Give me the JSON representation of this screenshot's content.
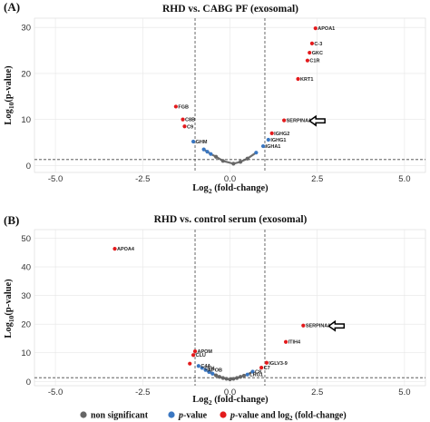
{
  "legend": {
    "items": [
      {
        "label": "non significant",
        "color": "#666666"
      },
      {
        "label_italic": "p",
        "label": "-value",
        "color": "#3a77c2"
      },
      {
        "label_italic": "p",
        "label": "-value and log",
        "label_sub": "2",
        "label_end": " (fold-change)",
        "color": "#e31a1c"
      }
    ]
  },
  "colors": {
    "ns": "#666666",
    "p": "#3a77c2",
    "both": "#e31a1c"
  },
  "chart_data": [
    {
      "panel": "(A)",
      "type": "scatter",
      "title": "RHD vs. CABG PF (exosomal)",
      "xlabel": {
        "base": "Log",
        "sub": "2",
        "rest": " (fold-change)"
      },
      "ylabel": {
        "base": "Log",
        "sub": "10",
        "rest": "(p-value)"
      },
      "xlim": [
        -5.6,
        5.6
      ],
      "ylim": [
        -1.5,
        32
      ],
      "xticks": [
        -5.0,
        -2.5,
        0.0,
        2.5,
        5.0
      ],
      "xtick_labels": [
        "-5.0",
        "-2.5",
        "0.0",
        "2.5",
        "5.0"
      ],
      "yticks": [
        0,
        10,
        20,
        30
      ],
      "ytick_labels": [
        "0",
        "10",
        "20",
        "30"
      ],
      "vlines": [
        -1,
        1
      ],
      "hline": 1.3,
      "grid": true,
      "arrow_target": "SERPINA1",
      "points": [
        {
          "x": 2.45,
          "y": 29.8,
          "cls": "both",
          "label": "APOA1"
        },
        {
          "x": 2.35,
          "y": 26.5,
          "cls": "both",
          "label": "C-3"
        },
        {
          "x": 2.28,
          "y": 24.5,
          "cls": "both",
          "label": "GKC"
        },
        {
          "x": 2.22,
          "y": 22.8,
          "cls": "both",
          "label": "C1R"
        },
        {
          "x": 1.95,
          "y": 18.8,
          "cls": "both",
          "label": "KRT1"
        },
        {
          "x": 1.55,
          "y": 9.8,
          "cls": "both",
          "label": "SERPINA1"
        },
        {
          "x": 1.2,
          "y": 7.0,
          "cls": "both",
          "label": "IGHG2"
        },
        {
          "x": 1.1,
          "y": 5.6,
          "cls": "p",
          "label": "IGHG1"
        },
        {
          "x": 0.95,
          "y": 4.2,
          "cls": "p",
          "label": "IGHA1"
        },
        {
          "x": -1.55,
          "y": 12.8,
          "cls": "both",
          "label": "FGB"
        },
        {
          "x": -1.35,
          "y": 10.0,
          "cls": "both",
          "label": "C8B"
        },
        {
          "x": -1.3,
          "y": 8.5,
          "cls": "both",
          "label": "C9"
        },
        {
          "x": -1.05,
          "y": 5.2,
          "cls": "p",
          "label": "GHM"
        },
        {
          "x": -0.75,
          "y": 3.5,
          "cls": "p",
          "label": ""
        },
        {
          "x": -0.65,
          "y": 3.0,
          "cls": "p",
          "label": ""
        },
        {
          "x": -0.55,
          "y": 2.5,
          "cls": "p",
          "label": ""
        },
        {
          "x": -0.4,
          "y": 1.9,
          "cls": "ns",
          "label": ""
        },
        {
          "x": -0.2,
          "y": 1.0,
          "cls": "ns",
          "label": ""
        },
        {
          "x": 0.1,
          "y": 0.4,
          "cls": "ns",
          "label": ""
        },
        {
          "x": 0.3,
          "y": 0.8,
          "cls": "ns",
          "label": ""
        },
        {
          "x": 0.5,
          "y": 1.5,
          "cls": "ns",
          "label": ""
        },
        {
          "x": 0.75,
          "y": 2.8,
          "cls": "p",
          "label": ""
        }
      ]
    },
    {
      "panel": "(B)",
      "type": "scatter",
      "title": "RHD vs. control serum (exosomal)",
      "xlabel": {
        "base": "Log",
        "sub": "2",
        "rest": " (fold-change)"
      },
      "ylabel": {
        "base": "Log",
        "sub": "10",
        "rest": "(p-value)"
      },
      "xlim": [
        -5.6,
        5.6
      ],
      "ylim": [
        -1.5,
        53
      ],
      "xticks": [
        -5.0,
        -2.5,
        0.0,
        2.5,
        5.0
      ],
      "xtick_labels": [
        "-5.0",
        "-2.5",
        "0.0",
        "2.5",
        "5.0"
      ],
      "yticks": [
        0,
        10,
        20,
        30,
        40,
        50
      ],
      "ytick_labels": [
        "0",
        "10",
        "20",
        "30",
        "40",
        "50"
      ],
      "vlines": [
        -1,
        1
      ],
      "hline": 1.3,
      "grid": true,
      "arrow_target": "SERPINA1",
      "points": [
        {
          "x": -3.3,
          "y": 46.3,
          "cls": "both",
          "label": "APOA4"
        },
        {
          "x": 2.1,
          "y": 19.5,
          "cls": "both",
          "label": "SERPINA1"
        },
        {
          "x": 1.6,
          "y": 13.8,
          "cls": "both",
          "label": "ITIH4"
        },
        {
          "x": 1.05,
          "y": 6.5,
          "cls": "both",
          "label": "IGLV3-9"
        },
        {
          "x": 0.9,
          "y": 4.8,
          "cls": "both",
          "label": "C7"
        },
        {
          "x": 0.65,
          "y": 3.4,
          "cls": "p",
          "label": "C8"
        },
        {
          "x": 0.5,
          "y": 2.4,
          "cls": "p",
          "label": "LRG1"
        },
        {
          "x": -1.0,
          "y": 10.5,
          "cls": "both",
          "label": "APOM"
        },
        {
          "x": -1.05,
          "y": 9.2,
          "cls": "both",
          "label": "CLU"
        },
        {
          "x": -1.15,
          "y": 6.2,
          "cls": "both",
          "label": ""
        },
        {
          "x": -0.9,
          "y": 5.4,
          "cls": "p",
          "label": "C4A"
        },
        {
          "x": -0.8,
          "y": 4.7,
          "cls": "p",
          "label": "CFH"
        },
        {
          "x": -0.7,
          "y": 4.0,
          "cls": "p",
          "label": "APOB"
        },
        {
          "x": -0.6,
          "y": 3.3,
          "cls": "p",
          "label": ""
        },
        {
          "x": -0.5,
          "y": 2.7,
          "cls": "p",
          "label": ""
        },
        {
          "x": -0.4,
          "y": 2.1,
          "cls": "ns",
          "label": ""
        },
        {
          "x": -0.3,
          "y": 1.6,
          "cls": "ns",
          "label": ""
        },
        {
          "x": -0.2,
          "y": 1.2,
          "cls": "ns",
          "label": ""
        },
        {
          "x": -0.1,
          "y": 0.9,
          "cls": "ns",
          "label": ""
        },
        {
          "x": 0.0,
          "y": 0.7,
          "cls": "ns",
          "label": ""
        },
        {
          "x": 0.1,
          "y": 0.9,
          "cls": "ns",
          "label": ""
        },
        {
          "x": 0.2,
          "y": 1.2,
          "cls": "ns",
          "label": ""
        },
        {
          "x": 0.3,
          "y": 1.6,
          "cls": "ns",
          "label": ""
        },
        {
          "x": 0.4,
          "y": 2.0,
          "cls": "ns",
          "label": ""
        }
      ]
    }
  ]
}
